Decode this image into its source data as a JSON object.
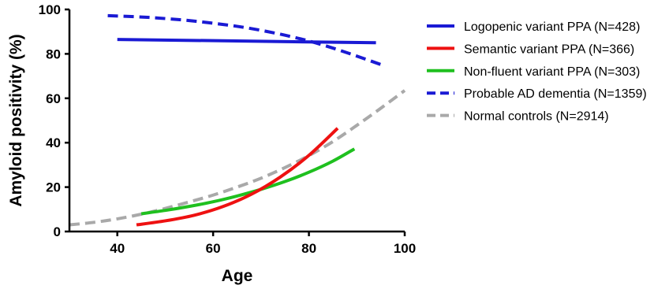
{
  "chart_data": {
    "type": "line",
    "xlabel": "Age",
    "ylabel": "Amyloid positivity (%)",
    "xlim": [
      30,
      100
    ],
    "ylim": [
      0,
      100
    ],
    "x_ticks": [
      "40",
      "60",
      "80",
      "100"
    ],
    "y_ticks": [
      "0",
      "20",
      "40",
      "60",
      "80",
      "100"
    ],
    "grid": false,
    "legend_position": "right",
    "series": [
      {
        "name": "Logopenic variant PPA (N=428)",
        "color": "#1a1ad4",
        "dash": "solid",
        "x": [
          40,
          94
        ],
        "y": [
          86.5,
          85
        ]
      },
      {
        "name": "Semantic variant PPA (N=366)",
        "color": "#ee1111",
        "dash": "solid",
        "x": [
          44,
          50,
          56,
          62,
          68,
          74,
          80,
          86
        ],
        "y": [
          3,
          4.8,
          7.3,
          11.2,
          16.8,
          24.5,
          34.3,
          46.5
        ]
      },
      {
        "name": "Non-fluent variant PPA (N=303)",
        "color": "#1fc01f",
        "dash": "solid",
        "x": [
          45,
          50,
          55,
          60,
          65,
          70,
          75,
          80,
          85,
          89.5
        ],
        "y": [
          8,
          9.5,
          11.3,
          13.4,
          16,
          19,
          22.5,
          26.7,
          31.7,
          37.2
        ]
      },
      {
        "name": "Probable AD dementia (N=1359)",
        "color": "#1a1ad4",
        "dash": "dashed",
        "x": [
          38,
          45,
          50,
          55,
          60,
          65,
          70,
          75,
          80,
          85,
          90,
          95
        ],
        "y": [
          97.2,
          96.6,
          95.9,
          95,
          93.8,
          92.4,
          90.6,
          88.4,
          85.8,
          82.6,
          79,
          75.2
        ]
      },
      {
        "name": "Normal controls (N=2914)",
        "color": "#a9a9a9",
        "dash": "dashed",
        "x": [
          30,
          35,
          40,
          45,
          50,
          55,
          60,
          65,
          70,
          75,
          80,
          85,
          90,
          95,
          100
        ],
        "y": [
          3,
          4.1,
          5.7,
          7.8,
          10.4,
          13.3,
          16.4,
          20,
          24,
          28.8,
          34.2,
          40.5,
          47.8,
          55.5,
          63.5
        ]
      }
    ]
  }
}
